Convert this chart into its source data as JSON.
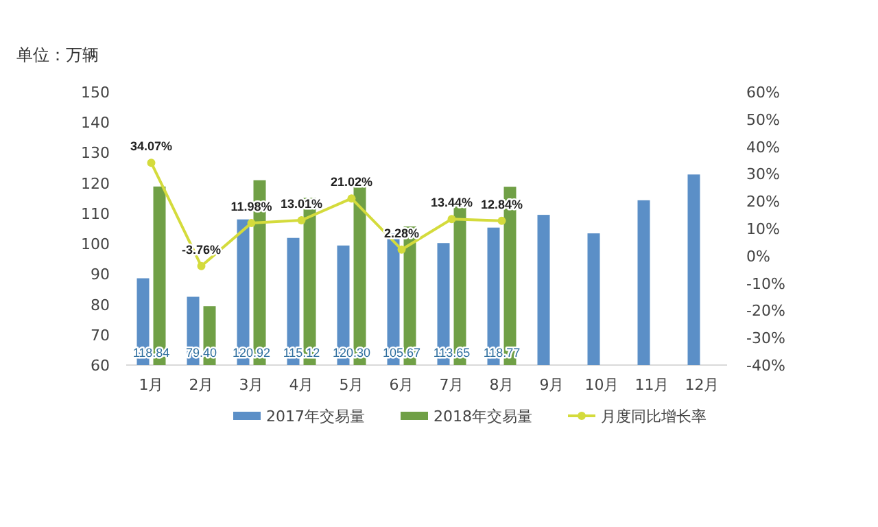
{
  "chart_data": {
    "type": "bar",
    "ylabel": "单位：万辆",
    "categories": [
      "1月",
      "2月",
      "3月",
      "4月",
      "5月",
      "6月",
      "7月",
      "8月",
      "9月",
      "10月",
      "11月",
      "12月"
    ],
    "series": [
      {
        "name": "2017年交易量",
        "color": "#5b8fc7",
        "values": [
          88.6,
          82.5,
          108.0,
          101.9,
          99.4,
          103.3,
          100.2,
          105.3,
          109.5,
          103.4,
          114.3,
          122.8
        ]
      },
      {
        "name": "2018年交易量",
        "color": "#70a046",
        "values": [
          118.84,
          79.4,
          120.92,
          115.12,
          120.3,
          105.67,
          113.65,
          118.77,
          null,
          null,
          null,
          null
        ],
        "value_labels": [
          "118.84",
          "79.40",
          "120.92",
          "115.12",
          "120.30",
          "105.67",
          "113.65",
          "118.77",
          null,
          null,
          null,
          null
        ]
      },
      {
        "name": "月度同比增长率",
        "type": "line",
        "axis": "y2",
        "color": "#d4db3c",
        "marker": "circle",
        "values": [
          34.07,
          -3.76,
          11.98,
          13.01,
          21.02,
          2.28,
          13.44,
          12.84,
          null,
          null,
          null,
          null
        ],
        "value_labels": [
          "34.07%",
          "-3.76%",
          "11.98%",
          "13.01%",
          "21.02%",
          "2.28%",
          "13.44%",
          "12.84%",
          null,
          null,
          null,
          null
        ]
      }
    ],
    "ylim": [
      60,
      150
    ],
    "yticks": [
      60,
      70,
      80,
      90,
      100,
      110,
      120,
      130,
      140,
      150
    ],
    "y2lim": [
      -40,
      60
    ],
    "y2ticks": [
      {
        "value": -40,
        "label": "-40%"
      },
      {
        "value": -30,
        "label": "-30%"
      },
      {
        "value": -20,
        "label": "-20%"
      },
      {
        "value": -10,
        "label": "-10%"
      },
      {
        "value": 0,
        "label": "0%"
      },
      {
        "value": 10,
        "label": "10%"
      },
      {
        "value": 20,
        "label": "20%"
      },
      {
        "value": 30,
        "label": "30%"
      },
      {
        "value": 40,
        "label": "40%"
      },
      {
        "value": 50,
        "label": "50%"
      },
      {
        "value": 60,
        "label": "60%"
      }
    ],
    "grid": false,
    "legend": "bottom"
  }
}
